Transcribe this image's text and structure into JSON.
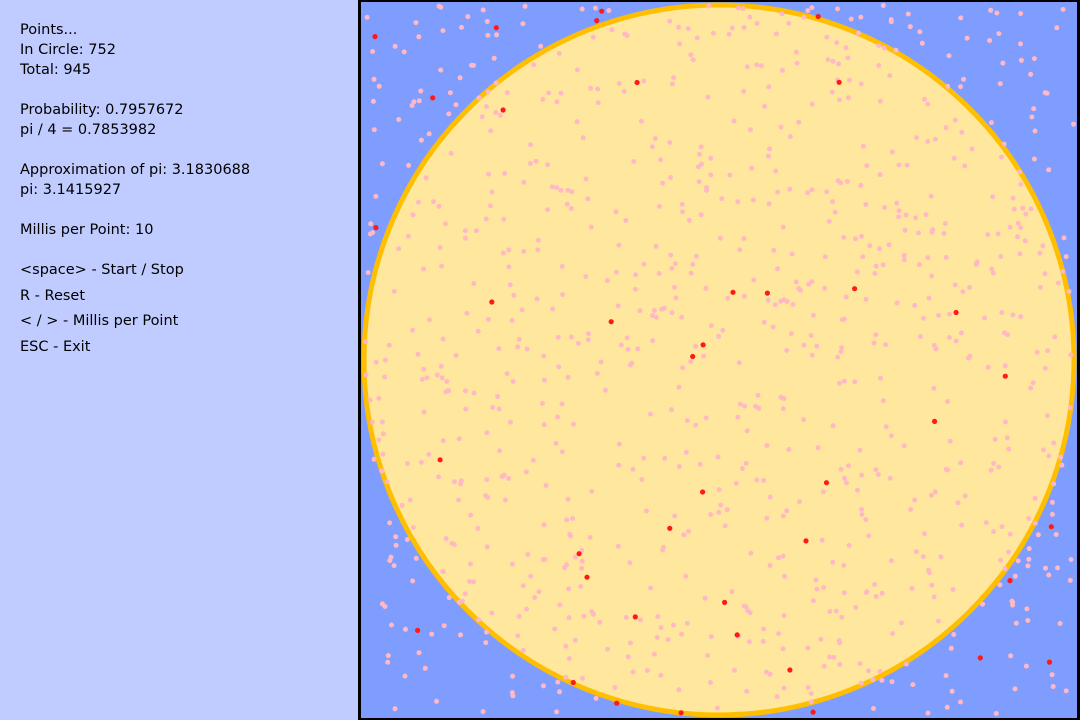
{
  "stats": {
    "points_heading": "Points...",
    "in_circle": "In Circle: 752",
    "total": "Total: 945",
    "probability": "Probability: 0.7957672",
    "pi_over_4": "pi / 4 = 0.7853982",
    "approximation": "Approximation of pi: 3.1830688",
    "pi": "pi: 3.1415927",
    "millis_per_point": "Millis per Point: 10"
  },
  "controls": {
    "start_stop": "<space> - Start / Stop",
    "reset": "R - Reset",
    "millis": "< / > - Millis per Point",
    "exit": "ESC - Exit"
  },
  "simulation": {
    "points_in_circle": 752,
    "points_total": 945,
    "recent_points": 40,
    "colors": {
      "square_fill": "#7f9dff",
      "circle_fill": "#ffe89e",
      "circle_outline": "#ffbf00",
      "point": "#ffb8c4",
      "recent_point": "#ff1a1a"
    }
  }
}
